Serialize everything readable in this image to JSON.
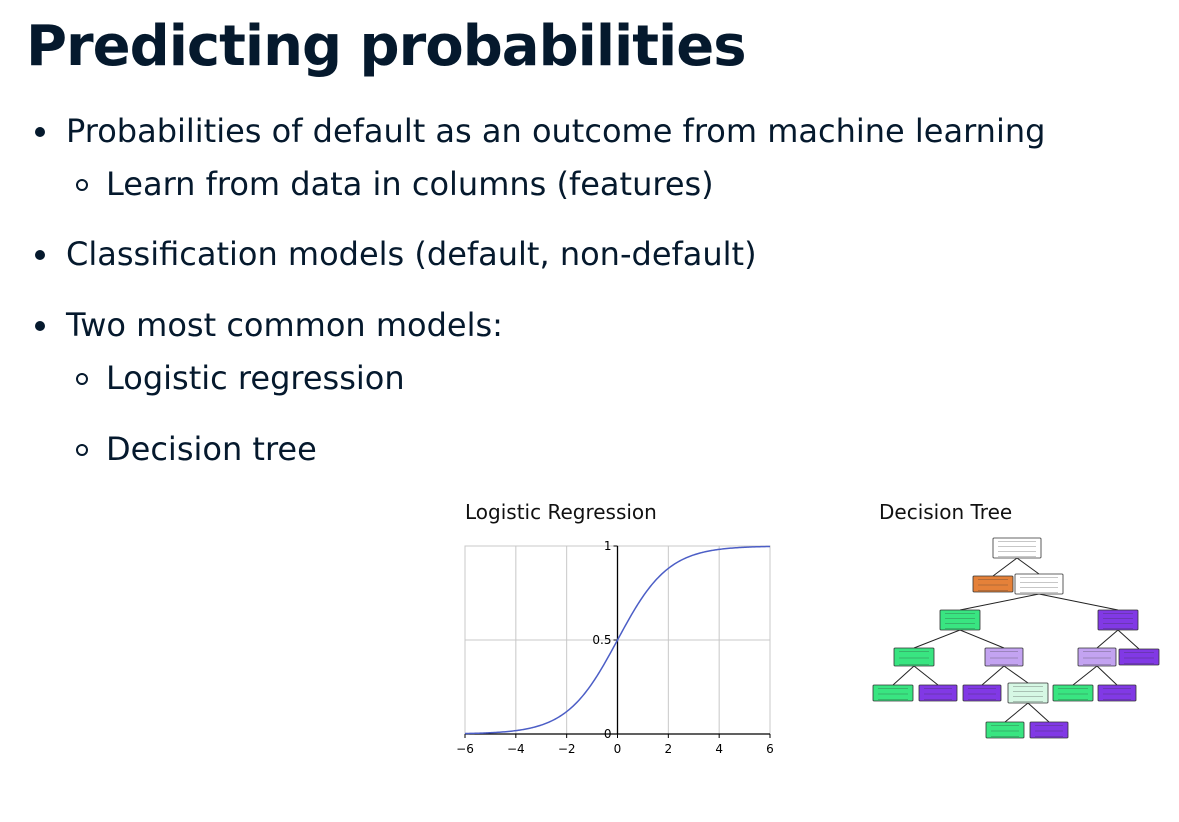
{
  "slide": {
    "title": "Predicting probabilities",
    "bullets": {
      "b1": "Probabilities of default as an outcome from machine learning",
      "b1_sub1": "Learn from data in columns (features)",
      "b2": "Classification models (default, non-default)",
      "b3": "Two most common models:",
      "b3_sub1": "Logistic regression",
      "b3_sub2": "Decision tree"
    }
  },
  "figures": {
    "logistic_title": "Logistic Regression",
    "tree_title": "Decision Tree",
    "tree_node_colors": {
      "root": "#ffffff",
      "orange": "#e58139",
      "green": "#39e581",
      "light_green": "#d6f8e4",
      "purple": "#8139e5",
      "light_purple": "#c3a3f1"
    }
  },
  "chart_data": {
    "type": "line",
    "title": "Logistic Regression",
    "xlabel": "",
    "ylabel": "",
    "xlim": [
      -6,
      6
    ],
    "ylim": [
      0,
      1
    ],
    "x_ticks": [
      "−6",
      "−4",
      "−2",
      "0",
      "2",
      "4",
      "6"
    ],
    "y_ticks": [
      "0",
      "0.5",
      "1"
    ],
    "grid": true,
    "series": [
      {
        "function": "1/(1+exp(-x))",
        "x": [
          -6,
          -4,
          -2,
          -1,
          0,
          1,
          2,
          4,
          6
        ],
        "y": [
          0.0025,
          0.018,
          0.12,
          0.27,
          0.5,
          0.73,
          0.88,
          0.982,
          0.9975
        ],
        "color": "#4c5ec6"
      }
    ]
  }
}
